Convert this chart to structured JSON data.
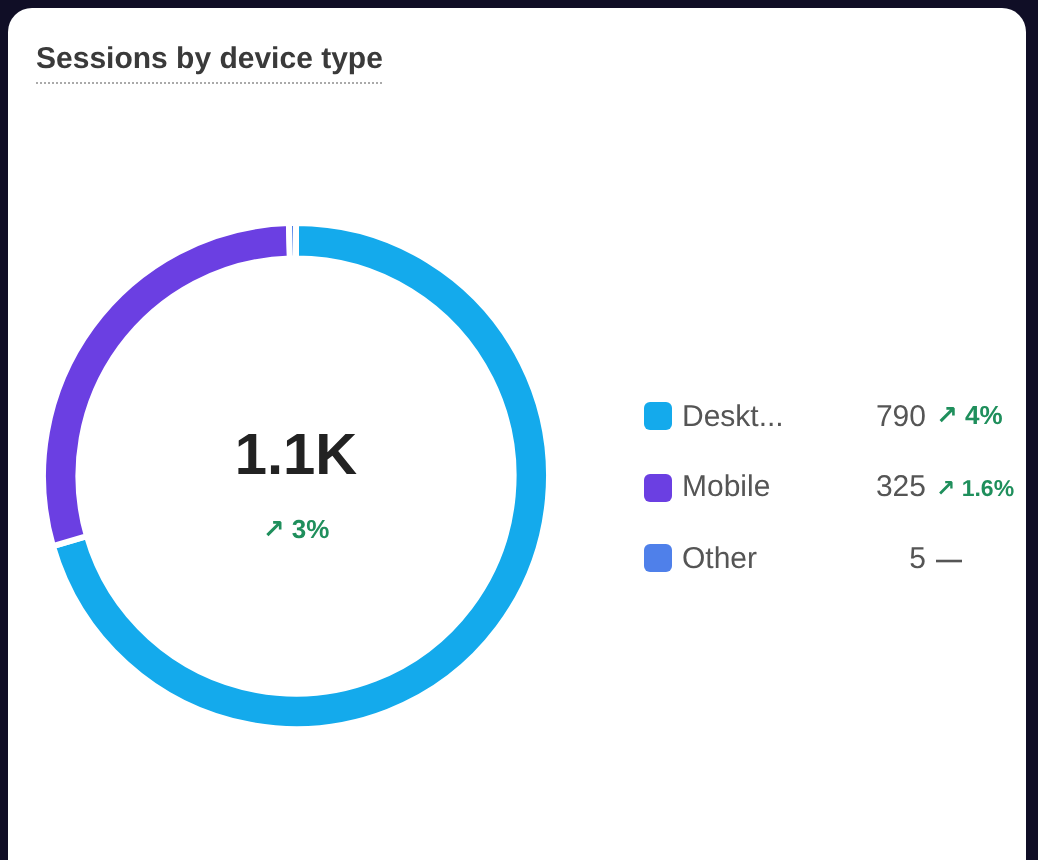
{
  "chart_data": {
    "type": "donut",
    "title": "Sessions by device type",
    "categories": [
      "Deskt...",
      "Mobile",
      "Other"
    ],
    "values": [
      790,
      325,
      5
    ],
    "colors": [
      "#14aaec",
      "#6b3fe2",
      "#4f80ea"
    ],
    "data_labels": true,
    "legend": "right",
    "annotations": [
      "1.1K",
      "↗ 3%",
      "↗ 4%",
      "↗ 1.6%",
      "—"
    ]
  }
}
